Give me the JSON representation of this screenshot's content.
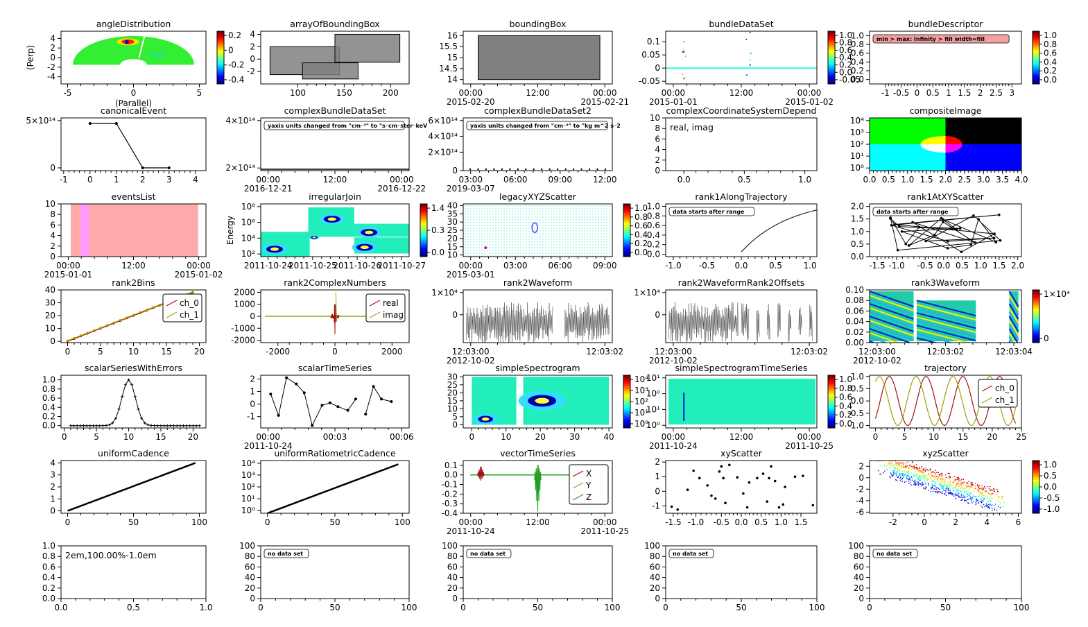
{
  "chart_data": [
    {
      "id": "p1",
      "type": "heatmap",
      "title": "angleDistribution",
      "xlabel": "(Parallel)",
      "ylabel": "(Perp)",
      "xlim": [
        -5.5,
        5.5
      ],
      "ylim": [
        -5.5,
        5.5
      ],
      "xticks": [
        -5,
        0,
        5
      ],
      "yticks": [
        4,
        2,
        0,
        -2,
        -4
      ],
      "colorbar": {
        "ticks": [
          "0.2",
          "0",
          "-0.2",
          "-0.4"
        ]
      }
    },
    {
      "id": "p2",
      "type": "table",
      "title": "arrayOfBoundingBox",
      "xlim": [
        60,
        220
      ],
      "ylim": [
        -4,
        4.5
      ],
      "xticks": [
        100,
        150,
        200
      ],
      "yticks": [
        4,
        2,
        0,
        -2
      ],
      "rects": [
        [
          70,
          2,
          145,
          -2.5
        ],
        [
          105,
          -0.6,
          165,
          -3.2
        ],
        [
          140,
          4,
          210,
          -0.5
        ]
      ]
    },
    {
      "id": "p3",
      "type": "table",
      "title": "boundingBox",
      "xlim": [
        -0.1,
        1.1
      ],
      "ylim": [
        13.8,
        16.2
      ],
      "xticks": [
        "00:00",
        "12:00",
        "00:00"
      ],
      "xsub": [
        "2015-02-20",
        "",
        "2015-02-21"
      ],
      "yticks": [
        16,
        15.5,
        15,
        14.5,
        14
      ],
      "rects": [
        [
          0.02,
          16,
          1,
          14
        ]
      ]
    },
    {
      "id": "p4",
      "type": "line",
      "title": "bundleDataSet",
      "xlim": [
        0,
        1
      ],
      "ylim": [
        -0.06,
        0.14
      ],
      "xticks": [
        "00:00",
        "12:00",
        "00:00"
      ],
      "xsub": [
        "2015-01-01",
        "",
        "2015-01-02"
      ],
      "yticks": [
        0.1,
        0.05,
        0,
        -0.05
      ],
      "colorbar": {
        "ticks": [
          "1.0",
          "0.8",
          "0.6",
          "0.4",
          "0.2",
          "0.0",
          "-0.05"
        ]
      }
    },
    {
      "id": "p5",
      "type": "table",
      "title": "bundleDescriptor",
      "xlim": [
        -1.5,
        3.3
      ],
      "ylim": [
        -0.1,
        1.1
      ],
      "xticks": [
        -1,
        -0.5,
        0,
        0.5,
        1,
        1.5,
        2,
        2.5,
        3
      ],
      "yticks": [
        "1.0",
        "0.8",
        "0.6",
        "0.4",
        "0.2",
        "0.0"
      ],
      "message": "min > max: Infinity  > fill width=fill",
      "colorbar": {
        "ticks": [
          "1.0",
          "0.8",
          "0.6",
          "0.4",
          "0.2",
          "0.0"
        ]
      }
    },
    {
      "id": "p6",
      "type": "line",
      "title": "canonicalEvent",
      "xlim": [
        -1.1,
        4.4
      ],
      "ylim": [
        -50000000000000.0,
        900000000000000.0
      ],
      "xticks": [
        -1,
        0,
        1,
        2,
        3,
        4
      ],
      "yticks": [
        "5×10¹⁴",
        "0"
      ],
      "x": [
        0,
        1,
        2,
        3
      ],
      "values": [
        800000000000000.0,
        800000000000000.0,
        0,
        0
      ]
    },
    {
      "id": "p7",
      "type": "line",
      "title": "complexBundleDataSet",
      "xlim": [
        -0.05,
        1.05
      ],
      "ylim": [
        0,
        600000000000000.0
      ],
      "xticks": [
        "00:00",
        "12:00",
        "00:00"
      ],
      "xsub": [
        "2016-12-21",
        "",
        "2016-12-22"
      ],
      "yticks": [
        "4×10¹⁴",
        "2×10¹⁴"
      ],
      "message": "yaxis units changed from \"cm⁻³\" to \"s⁻cm⁻ster⁻keV"
    },
    {
      "id": "p8",
      "type": "scatter",
      "title": "complexBundleDataSet2",
      "xlim": [
        0,
        12
      ],
      "ylim": [
        0,
        700000000000000.0
      ],
      "xticks": [
        "03:00",
        "06:00",
        "09:00",
        "12:00"
      ],
      "xsub": [
        "2019-03-07"
      ],
      "yticks": [
        "6×10¹⁴",
        "4×10¹⁴",
        "2×10¹⁴",
        "0"
      ],
      "message": "yaxis units changed from \"cm⁻³\" to \"kg m^2 s⁻2"
    },
    {
      "id": "p9",
      "type": "table",
      "title": "complexCoordinateSystemDepend",
      "xlim": [
        -0.15,
        1.1
      ],
      "ylim": [
        0,
        10
      ],
      "xticks": [
        "0.0",
        "0.5",
        "1.0"
      ],
      "yticks": [
        10,
        8,
        6,
        4,
        2,
        0
      ],
      "message": "real, imag"
    },
    {
      "id": "p10",
      "type": "heatmap",
      "title": "compositeImage",
      "xlim": [
        0,
        4
      ],
      "ylim": [
        0,
        4
      ],
      "xticks": [
        "0.0",
        "0.5",
        "1.0",
        "1.5",
        "2.0",
        "2.5",
        "3.0",
        "3.5",
        "4.0"
      ],
      "yticks": [
        "10⁴",
        "10³",
        "10²",
        "10¹",
        "10⁰"
      ]
    },
    {
      "id": "p11",
      "type": "bar",
      "title": "eventsList",
      "xlim": [
        -0.2,
        1.1
      ],
      "ylim": [
        0,
        10
      ],
      "xticks": [
        "00:00",
        "12:00",
        "00:00"
      ],
      "xsub": [
        "2015-01-01",
        "",
        "2015-01-02"
      ],
      "yticks": [
        10,
        8,
        6,
        4,
        2,
        0
      ]
    },
    {
      "id": "p12",
      "type": "heatmap",
      "title": "irregularJoin",
      "ylabel": "Energy",
      "xlim": [
        0,
        3
      ],
      "ylim": [
        0,
        8.5
      ],
      "xticks": [
        "2011-10-24",
        "2011-10-25",
        "2011-10-26",
        "2011-10-27"
      ],
      "yticks": [
        "10⁸",
        "10⁶",
        "10⁴",
        "10²"
      ],
      "colorbar": {
        "ticks": [
          "1.4",
          "0.3",
          "0.0"
        ]
      }
    },
    {
      "id": "p13",
      "type": "scatter",
      "title": "legacyXYZScatter",
      "xlim": [
        -0.2,
        10.5
      ],
      "ylim": [
        9,
        41
      ],
      "xticks": [
        "00:00",
        "03:00",
        "06:00",
        "09:00"
      ],
      "xsub": [
        "2015-03-01"
      ],
      "yticks": [
        40,
        35,
        30,
        25,
        20,
        15,
        10
      ],
      "colorbar": {
        "ticks": [
          "1.0",
          "0.8",
          "0.6",
          "0.4",
          "0.2",
          "0.0"
        ]
      }
    },
    {
      "id": "p14",
      "type": "line",
      "title": "rank1AlongTrajectory",
      "xlim": [
        -1.1,
        1.1
      ],
      "ylim": [
        -0.05,
        1.05
      ],
      "xticks": [
        "-1.0",
        "-0.5",
        "0.0",
        "0.5",
        "1.0"
      ],
      "yticks": [
        "1.0",
        "0.8",
        "0.6",
        "0.4",
        "0.2",
        "0.0"
      ],
      "message": "data starts after range"
    },
    {
      "id": "p15",
      "type": "line",
      "title": "rank1AtXYScatter",
      "xlim": [
        -2,
        2.1
      ],
      "ylim": [
        0,
        2.1
      ],
      "xticks": [
        "-1.5",
        "-1.0",
        "-0.5",
        "0.0",
        "0.5",
        "1.0",
        "1.5",
        "2.0"
      ],
      "yticks": [
        "2.0",
        "1.5",
        "1.0",
        "0.5",
        "0.0"
      ],
      "message": "data starts after range"
    },
    {
      "id": "p16",
      "type": "line",
      "title": "rank2Bins",
      "xlim": [
        -1,
        21
      ],
      "ylim": [
        -1,
        40
      ],
      "xticks": [
        0,
        5,
        10,
        15,
        20
      ],
      "yticks": [
        40,
        30,
        20,
        10,
        0
      ],
      "series": [
        {
          "name": "ch_0"
        },
        {
          "name": "ch_1"
        }
      ]
    },
    {
      "id": "p17",
      "type": "line",
      "title": "rank2ComplexNumbers",
      "xlim": [
        -2600,
        2600
      ],
      "ylim": [
        -2200,
        2200
      ],
      "xticks": [
        -2000,
        0,
        2000
      ],
      "yticks": [
        2000,
        1000,
        0,
        -1000,
        -2000
      ],
      "series": [
        {
          "name": "real"
        },
        {
          "name": "imag"
        }
      ]
    },
    {
      "id": "p18",
      "type": "line",
      "title": "rank2Waveform",
      "xlim": [
        0,
        2
      ],
      "ylim": [
        -18000.0,
        16000.0
      ],
      "xticks": [
        "12:03:00",
        "12:03:02"
      ],
      "xsub": [
        "2012-10-02"
      ],
      "yticks": [
        "1×10⁴",
        "0"
      ]
    },
    {
      "id": "p19",
      "type": "line",
      "title": "rank2WaveformRank2Offsets",
      "xlim": [
        0,
        2
      ],
      "ylim": [
        -18000.0,
        16000.0
      ],
      "xticks": [
        "12:03:00",
        "12:03:02"
      ],
      "xsub": [
        "2012-10-02"
      ],
      "yticks": [
        "1×10⁴",
        "0"
      ]
    },
    {
      "id": "p20",
      "type": "heatmap",
      "title": "rank3Waveform",
      "xlim": [
        0,
        4
      ],
      "ylim": [
        0,
        0.1
      ],
      "xticks": [
        "12:03:00",
        "12:03:02",
        "12:03:04"
      ],
      "xsub": [
        "2012-10-02"
      ],
      "yticks": [
        "0.10",
        "0.08",
        "0.06",
        "0.04",
        "0.02",
        "0.00"
      ],
      "colorbar": {
        "ticks": [
          "1×10⁴",
          "0"
        ]
      }
    },
    {
      "id": "p21",
      "type": "line",
      "title": "scalarSeriesWithErrors",
      "xlim": [
        -0.5,
        22
      ],
      "ylim": [
        -0.05,
        1.1
      ],
      "xticks": [
        0,
        5,
        10,
        15,
        20
      ],
      "yticks": [
        "1.0",
        "0.8",
        "0.6",
        "0.4",
        "0.2",
        "0.0"
      ]
    },
    {
      "id": "p22",
      "type": "line",
      "title": "scalarTimeSeries",
      "xlim": [
        -0.5,
        7
      ],
      "ylim": [
        -1.9,
        2.3
      ],
      "xticks": [
        "00:00",
        "00:03",
        "00:06"
      ],
      "xsub": [
        "2011-10-24"
      ],
      "yticks": [
        2,
        1,
        0,
        -1
      ],
      "x": [
        0,
        0.4,
        0.8,
        1.3,
        1.7,
        2.1,
        2.6,
        3,
        3.4,
        3.9,
        4.3,
        4.8,
        5.2,
        5.6,
        6.1
      ],
      "values": [
        0.8,
        -0.9,
        2.1,
        1.6,
        0.9,
        -1.7,
        -0.1,
        0.1,
        -0.2,
        -0.5,
        0.4,
        -0.8,
        1.4,
        0.4,
        0.2
      ]
    },
    {
      "id": "p23",
      "type": "heatmap",
      "title": "simpleSpectrogram",
      "xlim": [
        -2.5,
        41
      ],
      "ylim": [
        -2,
        31
      ],
      "xticks": [
        0,
        10,
        20,
        30,
        40
      ],
      "yticks": [
        30,
        25,
        20,
        15,
        10,
        5,
        0
      ],
      "colorbar": {
        "ticks": [
          "10⁴",
          "10³",
          "10²",
          "10¹",
          "10⁰"
        ]
      }
    },
    {
      "id": "p24",
      "type": "heatmap",
      "title": "simpleSpectrogramTimeSeries",
      "xlim": [
        -0.02,
        1.02
      ],
      "ylim": [
        -2,
        11
      ],
      "xticks": [
        "00:00",
        "12:00",
        "00:00"
      ],
      "xsub": [
        "2011-10-24",
        "",
        "2011-10-25"
      ],
      "yticks": [
        "10¹",
        "10⁰",
        "10¹",
        "10⁰"
      ],
      "colorbar": {
        "ticks": [
          "1.0",
          "0.8",
          "0.6",
          "0.4",
          "0.2",
          "0.0"
        ]
      }
    },
    {
      "id": "p25",
      "type": "line",
      "title": "trajectory",
      "xlim": [
        -1,
        25
      ],
      "ylim": [
        -1.1,
        1.05
      ],
      "xticks": [
        0,
        5,
        10,
        15,
        20,
        25
      ],
      "yticks": [
        "1.0",
        "0.5",
        "0.0",
        "-0.5",
        "-1.0"
      ],
      "series": [
        {
          "name": "ch_0"
        },
        {
          "name": "ch_1"
        }
      ]
    },
    {
      "id": "p26",
      "type": "line",
      "title": "uniformCadence",
      "xlim": [
        -5,
        105
      ],
      "ylim": [
        -0.2,
        4.2
      ],
      "xticks": [
        0,
        50,
        100
      ],
      "yticks": [
        4,
        3,
        2,
        1,
        0
      ],
      "x": [
        0,
        97
      ],
      "values": [
        0,
        4
      ]
    },
    {
      "id": "p27",
      "type": "line",
      "title": "uniformRatiometricCadence",
      "xlim": [
        -5,
        105
      ],
      "ylim": [
        0,
        4.3
      ],
      "xticks": [
        0,
        50,
        100
      ],
      "yticks": [
        "10⁴",
        "10³",
        "10²",
        "10¹",
        "10⁰"
      ],
      "x": [
        0,
        97
      ],
      "values": [
        0,
        4
      ]
    },
    {
      "id": "p28",
      "type": "line",
      "title": "vectorTimeSeries",
      "xlim": [
        -0.05,
        1.05
      ],
      "ylim": [
        -0.4,
        0.15
      ],
      "xticks": [
        "00:00",
        "12:00",
        "00:00"
      ],
      "xsub": [
        "2011-10-24",
        "",
        "2011-10-25"
      ],
      "yticks": [
        "0.1",
        "0.0",
        "-0.1",
        "-0.2",
        "-0.3",
        "-0.4"
      ],
      "series": [
        {
          "name": "X"
        },
        {
          "name": "Y"
        },
        {
          "name": "Z"
        }
      ]
    },
    {
      "id": "p29",
      "type": "scatter",
      "title": "xyScatter",
      "xlim": [
        -1.9,
        1.9
      ],
      "ylim": [
        -1.5,
        2.1
      ],
      "xticks": [
        "-1.5",
        "-1.0",
        "-0.5",
        "0.0",
        "0.5",
        "1.0",
        "1.5"
      ],
      "yticks": [
        2,
        1,
        0,
        -1
      ],
      "x": [
        -1.75,
        -1.6,
        -1.35,
        -1.2,
        -1.05,
        -0.85,
        -0.75,
        -0.65,
        -0.55,
        -0.5,
        -0.45,
        -0.4,
        -0.3,
        -0.1,
        0.05,
        0.15,
        0.2,
        0.4,
        0.55,
        0.65,
        0.7,
        0.75,
        0.85,
        0.95,
        1.05,
        1.1,
        1.35,
        1.55,
        1.8
      ],
      "values": [
        -1.05,
        -1.25,
        0.1,
        1.4,
        0.9,
        0.4,
        -0.3,
        -0.5,
        1.35,
        1.7,
        0.9,
        -0.8,
        1.8,
        0.95,
        -0.15,
        -1.1,
        0.6,
        0.9,
        1.2,
        -0.7,
        0.9,
        1.7,
        0.7,
        -1.1,
        -0.9,
        0.3,
        1.0,
        1.05,
        -0.95
      ]
    },
    {
      "id": "p30",
      "type": "scatter",
      "title": "xyzScatter",
      "xlim": [
        -3.5,
        6.2
      ],
      "ylim": [
        -6.2,
        3
      ],
      "xticks": [
        -2,
        0,
        2,
        4,
        6
      ],
      "yticks": [
        2,
        0,
        -2,
        -4,
        -6
      ],
      "colorbar": {
        "ticks": [
          "1.0",
          "0.5",
          "0.0",
          "-0.5",
          "-1.0"
        ]
      }
    },
    {
      "id": "p31",
      "type": "table",
      "title": "",
      "xlim": [
        0,
        1
      ],
      "ylim": [
        0,
        1
      ],
      "xticks": [
        "0.0",
        "0.5",
        "1.0"
      ],
      "yticks": [
        "1.0",
        "0.8",
        "0.6",
        "0.4",
        "0.2",
        "0.0"
      ],
      "message": "2em,100.00%-1.0em"
    },
    {
      "id": "p32",
      "type": "table",
      "title": "",
      "xlim": [
        0,
        100
      ],
      "ylim": [
        0,
        100
      ],
      "xticks": [
        0,
        50,
        100
      ],
      "yticks": [
        100,
        80,
        60,
        40,
        20,
        0
      ],
      "message": "no data set"
    },
    {
      "id": "p33",
      "type": "table",
      "title": "",
      "xlim": [
        0,
        100
      ],
      "ylim": [
        0,
        100
      ],
      "xticks": [
        0,
        50,
        100
      ],
      "yticks": [
        100,
        80,
        60,
        40,
        20,
        0
      ],
      "message": "no data set"
    },
    {
      "id": "p34",
      "type": "table",
      "title": "",
      "xlim": [
        0,
        100
      ],
      "ylim": [
        0,
        100
      ],
      "xticks": [
        0,
        50,
        100
      ],
      "yticks": [
        100,
        80,
        60,
        40,
        20,
        0
      ],
      "message": "no data set"
    },
    {
      "id": "p35",
      "type": "table",
      "title": "",
      "xlim": [
        0,
        100
      ],
      "ylim": [
        0,
        100
      ],
      "xticks": [
        0,
        50,
        100
      ],
      "yticks": [
        100,
        80,
        60,
        40,
        20,
        0
      ],
      "message": "no data set"
    }
  ]
}
